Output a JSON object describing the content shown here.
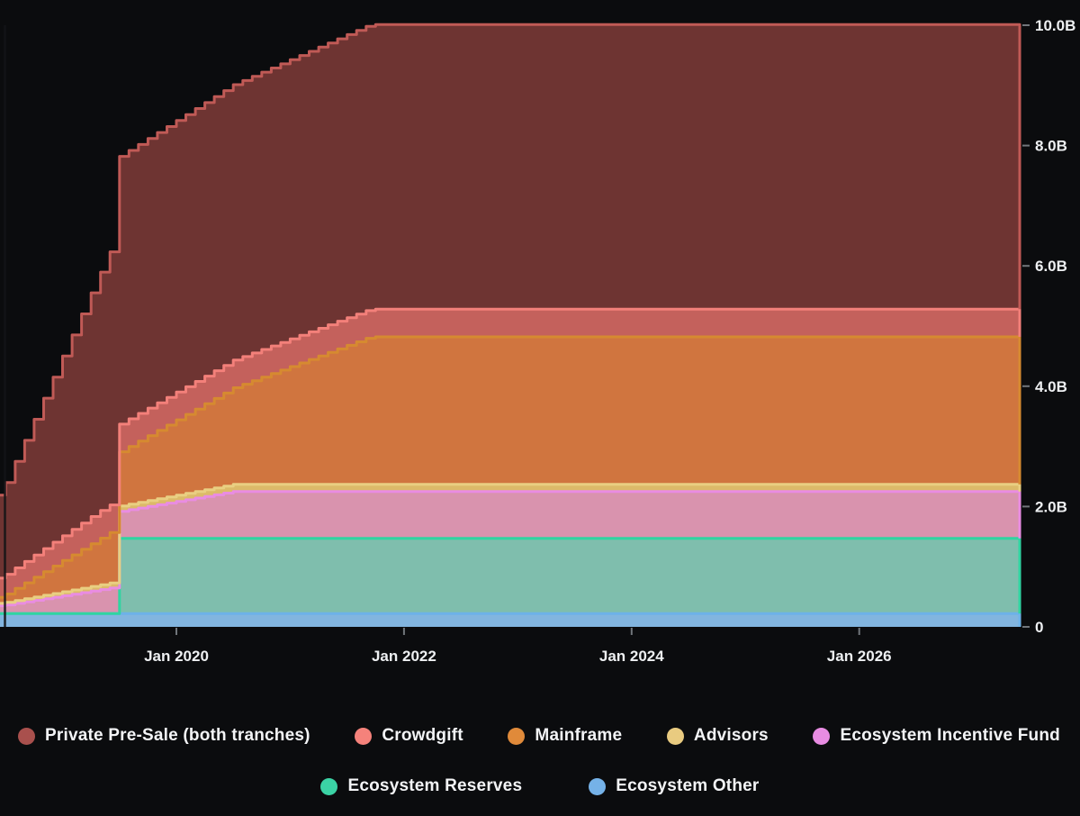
{
  "chart_data": {
    "type": "area",
    "subtype": "stacked-stepped (monthly steps), token emission schedule",
    "title": "",
    "background": "#0b0c0e",
    "grid": false,
    "x_axis": {
      "t_min": 2018.45,
      "t_max": 2027.41,
      "ticks": [
        {
          "t": 2020,
          "label": "Jan 2020"
        },
        {
          "t": 2022,
          "label": "Jan 2022"
        },
        {
          "t": 2024,
          "label": "Jan 2024"
        },
        {
          "t": 2026,
          "label": "Jan 2026"
        }
      ]
    },
    "y_axis": {
      "v_min": 0,
      "v_max": 10.0,
      "unit": "B",
      "side": "right",
      "ticks": [
        {
          "v": 0,
          "label": "0"
        },
        {
          "v": 2,
          "label": "2.0B"
        },
        {
          "v": 4,
          "label": "4.0B"
        },
        {
          "v": 6,
          "label": "6.0B"
        },
        {
          "v": 8,
          "label": "8.0B"
        },
        {
          "v": 10,
          "label": "10.0B"
        }
      ]
    },
    "series_note": "values in billions of tokens; keyframes [year, value]; stack order bottom-to-top; rendered as monthly steps",
    "series": [
      {
        "key": "eco_other",
        "label": "Ecosystem Other",
        "stroke": "#6db2e8",
        "fill": "#82b5df",
        "dot": "#75b2e8",
        "keyframes": [
          [
            2018.45,
            0.22
          ],
          [
            2027.41,
            0.22
          ]
        ]
      },
      {
        "key": "eco_reserves",
        "label": "Ecosystem Reserves",
        "stroke": "#2fd5a1",
        "fill": "#7fbead",
        "dot": "#3bd3a5",
        "keyframes": [
          [
            2018.45,
            0
          ],
          [
            2019.49,
            0
          ],
          [
            2019.5,
            1.25
          ],
          [
            2027.41,
            1.25
          ]
        ]
      },
      {
        "key": "eco_incentive",
        "label": "Ecosystem Incentive Fund",
        "stroke": "#e98ce2",
        "fill": "#d993ae",
        "dot": "#e88ce2",
        "keyframes": [
          [
            2018.45,
            0.13
          ],
          [
            2019.5,
            0.45
          ],
          [
            2020.5,
            0.78
          ],
          [
            2027.41,
            0.78
          ]
        ]
      },
      {
        "key": "advisors",
        "label": "Advisors",
        "stroke": "#e9cf82",
        "fill": "#dcba69",
        "dot": "#e9cb80",
        "keyframes": [
          [
            2018.45,
            0.04
          ],
          [
            2019.5,
            0.09
          ],
          [
            2020.5,
            0.12
          ],
          [
            2027.41,
            0.12
          ]
        ]
      },
      {
        "key": "mainframe",
        "label": "Mainframe",
        "stroke": "#d68a30",
        "fill": "#d0753f",
        "dot": "#e08a3a",
        "keyframes": [
          [
            2018.45,
            0.1
          ],
          [
            2019.5,
            0.9
          ],
          [
            2021.7,
            2.45
          ],
          [
            2027.41,
            2.45
          ]
        ]
      },
      {
        "key": "crowdgift",
        "label": "Crowdgift",
        "stroke": "#f3807a",
        "fill": "#c4615c",
        "dot": "#f5827b",
        "keyframes": [
          [
            2018.45,
            0.32
          ],
          [
            2019.3,
            0.46
          ],
          [
            2027.41,
            0.46
          ]
        ]
      },
      {
        "key": "private_presale",
        "label": "Private Pre-Sale (both tranches)",
        "stroke": "#c05a56",
        "fill": "#6e3432",
        "dot": "#a9504d",
        "keyframes": [
          [
            2018.45,
            1.38
          ],
          [
            2019.5,
            4.45
          ],
          [
            2021.7,
            4.73
          ],
          [
            2027.41,
            4.73
          ]
        ]
      }
    ],
    "legend_rows": [
      [
        "private_presale",
        "crowdgift",
        "mainframe",
        "advisors",
        "eco_incentive"
      ],
      [
        "eco_reserves",
        "eco_other"
      ]
    ],
    "axis_style": {
      "tick_color": "#71767b",
      "label_color": "#eef0f2"
    }
  }
}
